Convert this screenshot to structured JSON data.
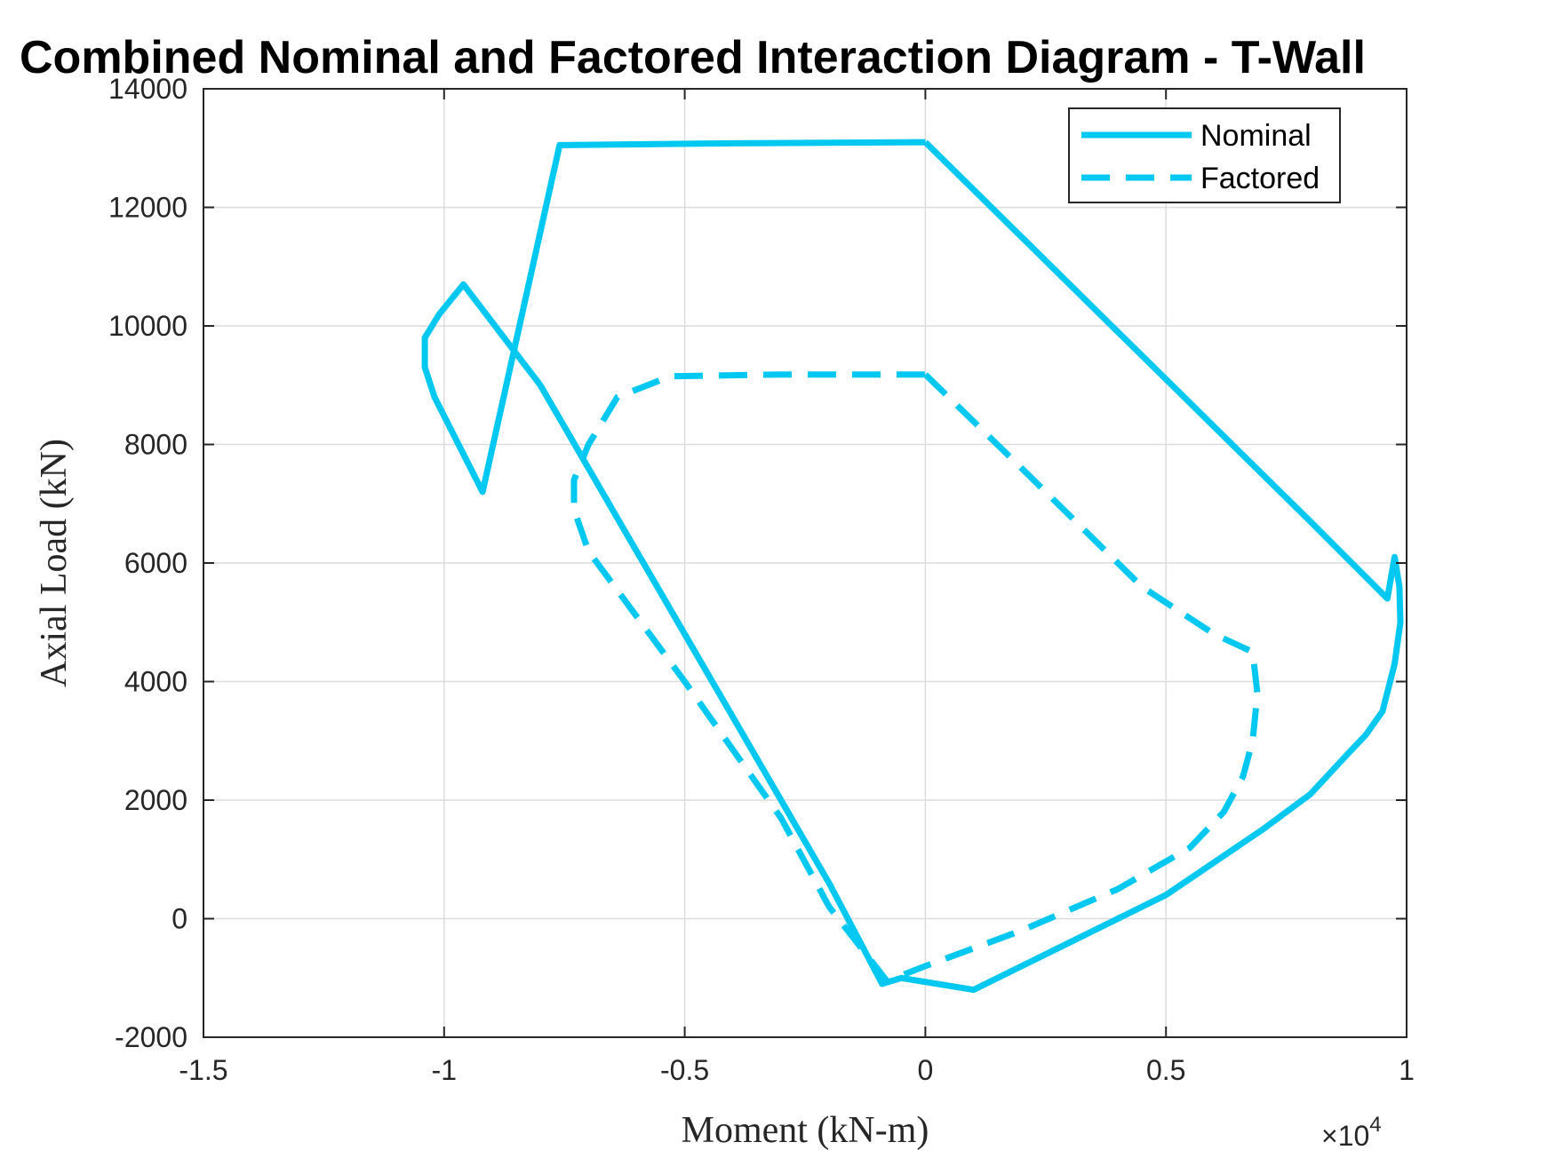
{
  "chart_data": {
    "type": "line",
    "title": "Combined Nominal and Factored Interaction Diagram - T-Wall",
    "xlabel": "Moment (kN-m)",
    "ylabel": "Axial Load (kN)",
    "x_multiplier_label": "×10",
    "x_multiplier_exponent": "4",
    "x_scale": 10000,
    "xlim": [
      -1.5,
      1.0
    ],
    "ylim": [
      -2000,
      14000
    ],
    "xticks": [
      -1.5,
      -1,
      -0.5,
      0,
      0.5,
      1
    ],
    "xtick_labels": [
      "-1.5",
      "-1",
      "-0.5",
      "0",
      "0.5",
      "1"
    ],
    "yticks": [
      -2000,
      0,
      2000,
      4000,
      6000,
      8000,
      10000,
      12000,
      14000
    ],
    "ytick_labels": [
      "-2000",
      "0",
      "2000",
      "4000",
      "6000",
      "8000",
      "10000",
      "12000",
      "14000"
    ],
    "grid": true,
    "legend_position": "top-right",
    "series": [
      {
        "name": "Nominal",
        "color": "#00C8F0",
        "style": "solid",
        "x": [
          0.0,
          0.2,
          0.4,
          0.6,
          0.8,
          0.96,
          0.975,
          0.985,
          0.987,
          0.975,
          0.95,
          0.915,
          0.88,
          0.8,
          0.7,
          0.5,
          0.3,
          0.1,
          -0.05,
          -0.09,
          -0.2,
          -0.4,
          -0.6,
          -0.8,
          -0.96,
          -1.01,
          -1.04,
          -1.04,
          -1.02,
          -0.97,
          -0.92,
          -0.76,
          -0.4,
          0.0
        ],
        "y": [
          13100,
          11500,
          9900,
          8300,
          6700,
          5400,
          6100,
          5600,
          5000,
          4300,
          3500,
          3100,
          2800,
          2100,
          1500,
          400,
          -400,
          -1200,
          -1000,
          -1100,
          600,
          3400,
          6200,
          9000,
          10700,
          10200,
          9800,
          9300,
          8800,
          8000,
          7200,
          13050,
          13080,
          13100
        ],
        "note_order": "closed curve"
      },
      {
        "name": "Factored",
        "color": "#00C8F0",
        "style": "dashed",
        "x": [
          0.0,
          0.2,
          0.45,
          0.6,
          0.68,
          0.69,
          0.68,
          0.66,
          0.62,
          0.55,
          0.4,
          0.2,
          0.0,
          -0.08,
          -0.2,
          -0.3,
          -0.5,
          -0.7,
          -0.73,
          -0.73,
          -0.7,
          -0.64,
          -0.53,
          -0.3,
          0.0
        ],
        "y": [
          9180,
          7600,
          5600,
          4800,
          4500,
          3800,
          3000,
          2400,
          1800,
          1200,
          500,
          -200,
          -800,
          -1050,
          200,
          1700,
          4000,
          6200,
          6900,
          7400,
          8000,
          8800,
          9150,
          9180,
          9180
        ]
      }
    ]
  }
}
